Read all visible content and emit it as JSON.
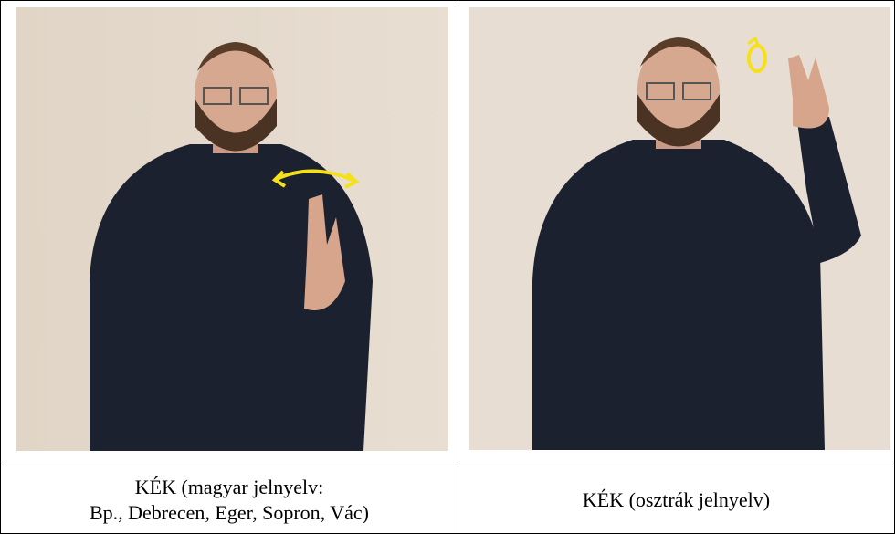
{
  "cells": [
    {
      "caption": [
        "KÉK (magyar jelnyelv:",
        "Bp., Debrecen, Eger, Sopron, Vác)"
      ]
    },
    {
      "caption": [
        "KÉK (osztrák jelnyelv)"
      ]
    }
  ]
}
